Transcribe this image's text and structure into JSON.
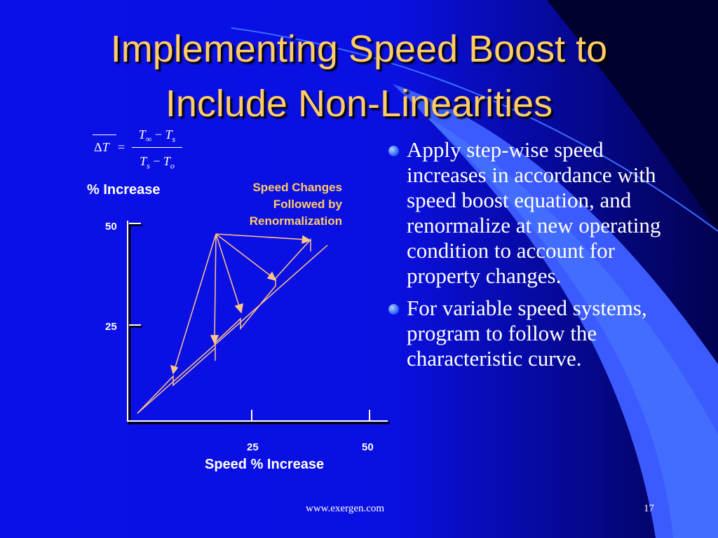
{
  "slide": {
    "title_line1": "Implementing Speed Boost to",
    "title_line2": "Include Non-Linearities",
    "footer_url": "www.exergen.com",
    "page_number": "17",
    "colors": {
      "background": "#0a10e8",
      "title": "#ffcc66",
      "annotation": "#ffcc66",
      "line": "#ffc488",
      "text": "#ffffff"
    }
  },
  "formula": {
    "lhs_delta": "Δ",
    "lhs_var": "T",
    "equals": "=",
    "numerator_a": "T",
    "numerator_a_sub": "∞",
    "numerator_op": " − ",
    "numerator_b": "T",
    "numerator_b_sub": "s",
    "denominator_a": "T",
    "denominator_a_sub": "s",
    "denominator_op": " − ",
    "denominator_b": "T",
    "denominator_b_sub": "o"
  },
  "diagram": {
    "y_label": "% Increase",
    "x_label": "Speed % Increase",
    "y_ticks": [
      "50",
      "25"
    ],
    "x_ticks": [
      "25",
      "50"
    ],
    "annotation_line1": "Speed Changes",
    "annotation_line2": "Followed by",
    "annotation_line3": "Renormalization"
  },
  "bullets": [
    {
      "text": "Apply step-wise speed increases in accordance with speed boost equation, and renormalize at new operating condition to account for property changes."
    },
    {
      "text": "For variable speed systems, program to follow the characteristic curve."
    }
  ]
}
